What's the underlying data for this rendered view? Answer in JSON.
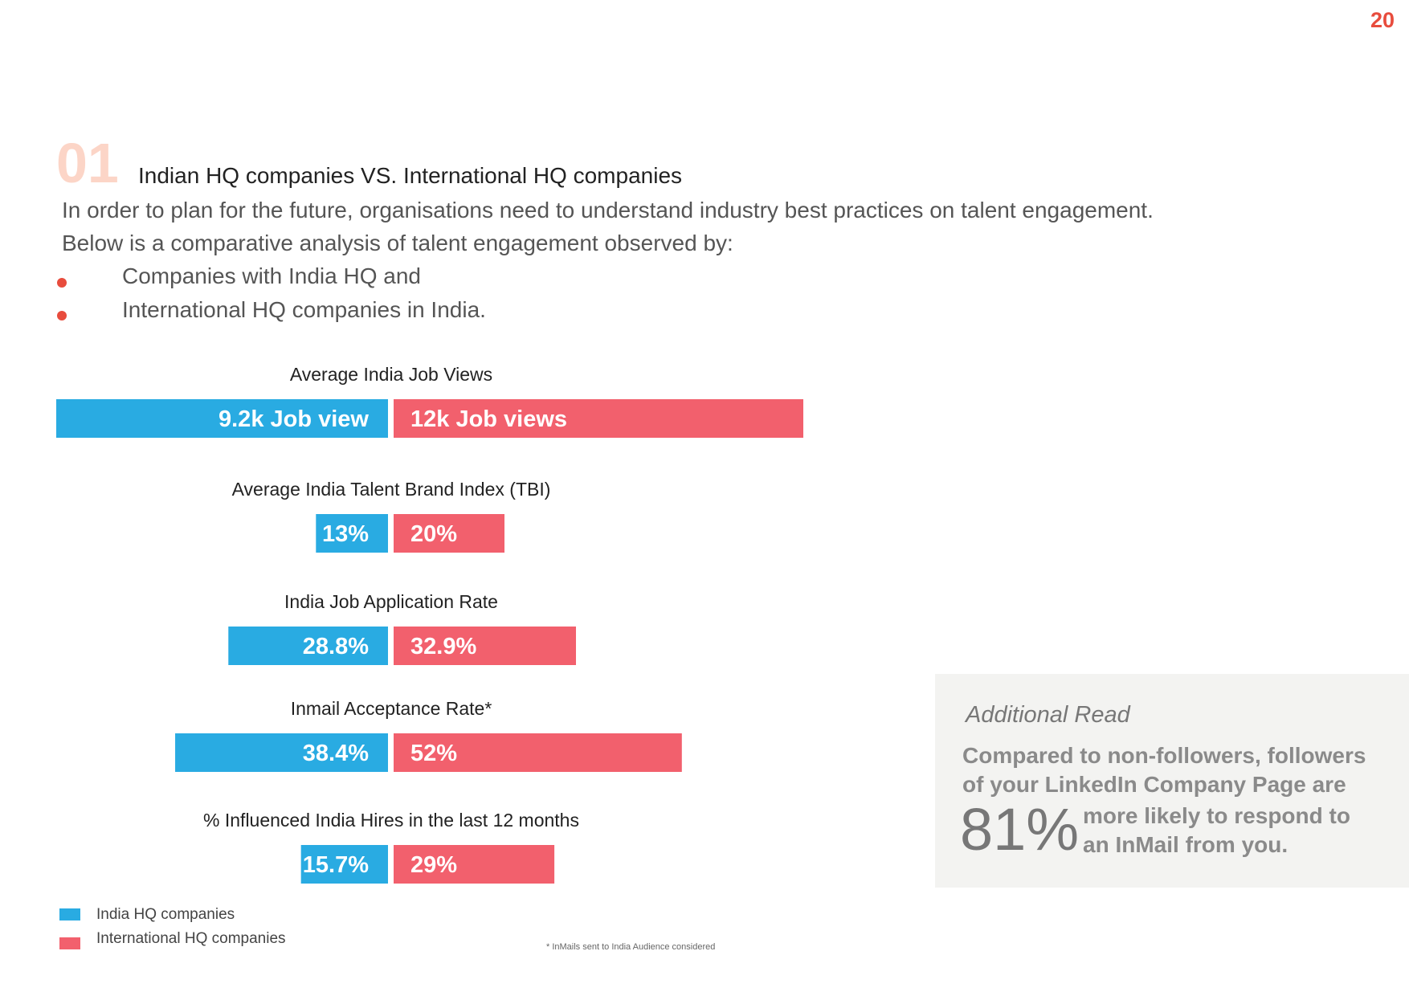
{
  "page_number": "20",
  "section": {
    "number": "01",
    "title": "Indian HQ companies VS. International HQ companies",
    "intro_lines": [
      "In order to plan for the future, organisations need to understand industry best practices on talent engagement.",
      "Below is a comparative analysis of talent engagement observed by:"
    ],
    "bullets": [
      "Companies with India HQ and",
      "International HQ companies in India."
    ]
  },
  "colors": {
    "india": "#29abe2",
    "international": "#f2606d",
    "accent": "#e84c3d",
    "section_number": "#fcd5c7"
  },
  "chart_data": {
    "type": "bar",
    "orientation": "diverging-horizontal",
    "series": [
      {
        "name": "India HQ companies",
        "color": "#29abe2"
      },
      {
        "name": "International HQ companies",
        "color": "#f2606d"
      }
    ],
    "groups": [
      {
        "title": "Average India Job Views",
        "india": 9.2,
        "international": 12,
        "india_label": "9.2k Job view",
        "international_label": "12k Job views"
      },
      {
        "title": "Average India Talent Brand Index (TBI)",
        "india": 13,
        "international": 20,
        "india_label": "13%",
        "international_label": "20%"
      },
      {
        "title": "India Job Application Rate",
        "india": 28.8,
        "international": 32.9,
        "india_label": "28.8%",
        "international_label": "32.9%"
      },
      {
        "title": "Inmail Acceptance Rate*",
        "india": 38.4,
        "international": 52,
        "india_label": "38.4%",
        "international_label": "52%"
      },
      {
        "title": "% Influenced India Hires in the last 12 months",
        "india": 15.7,
        "international": 29,
        "india_label": "15.7%",
        "international_label": "29%"
      }
    ],
    "legend": [
      "India HQ companies",
      "International HQ companies"
    ],
    "footnote": "* InMails sent to India Audience considered"
  },
  "additional_read": {
    "heading": "Additional Read",
    "lines": [
      "Compared to non-followers, followers",
      "of your LinkedIn Company Page are"
    ],
    "stat": "81%",
    "stat_lines": [
      "more likely to respond to",
      "an InMail from you."
    ]
  }
}
